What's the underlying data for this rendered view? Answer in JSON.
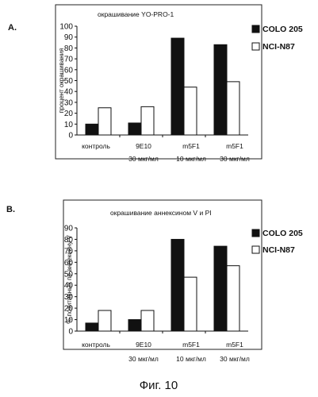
{
  "chart_data": [
    {
      "type": "bar",
      "panel": "A.",
      "title": "окрашивание YO-PRO-1",
      "xlabel": "",
      "ylabel": "процент окрашивания",
      "ylim": [
        0,
        100
      ],
      "yticks": [
        0,
        10,
        20,
        30,
        40,
        50,
        60,
        70,
        80,
        90,
        100
      ],
      "categories": [
        {
          "line1": "контроль",
          "line2": ""
        },
        {
          "line1": "9E10",
          "line2": "30 мкг/мл"
        },
        {
          "line1": "m5F1",
          "line2": "10 мкг/мл"
        },
        {
          "line1": "m5F1",
          "line2": "30 мкг/мл"
        }
      ],
      "series": [
        {
          "name": "COLO 205",
          "color": "#111111",
          "values": [
            10,
            11,
            89,
            83
          ]
        },
        {
          "name": "NCI-N87",
          "color": "#ffffff",
          "values": [
            25,
            26,
            44,
            49
          ]
        }
      ],
      "grid": false,
      "legend_position": "right"
    },
    {
      "type": "bar",
      "panel": "B.",
      "title": "окрашивание аннексином V и PI",
      "xlabel": "",
      "ylabel": "% позитивных по аннексину V",
      "ylim": [
        0,
        90
      ],
      "yticks": [
        0,
        10,
        20,
        30,
        40,
        50,
        60,
        70,
        80,
        90
      ],
      "categories": [
        {
          "line1": "контроль",
          "line2": ""
        },
        {
          "line1": "9E10",
          "line2": "30 мкг/мл"
        },
        {
          "line1": "m5F1",
          "line2": "10 мкг/мл"
        },
        {
          "line1": "m5F1",
          "line2": "30 мкг/мл"
        }
      ],
      "series": [
        {
          "name": "COLO 205",
          "color": "#111111",
          "values": [
            7,
            10,
            80,
            74
          ]
        },
        {
          "name": "NCI-N87",
          "color": "#ffffff",
          "values": [
            18,
            18,
            47,
            57
          ]
        }
      ],
      "grid": false,
      "legend_position": "right"
    }
  ],
  "caption": "Фиг. 10"
}
